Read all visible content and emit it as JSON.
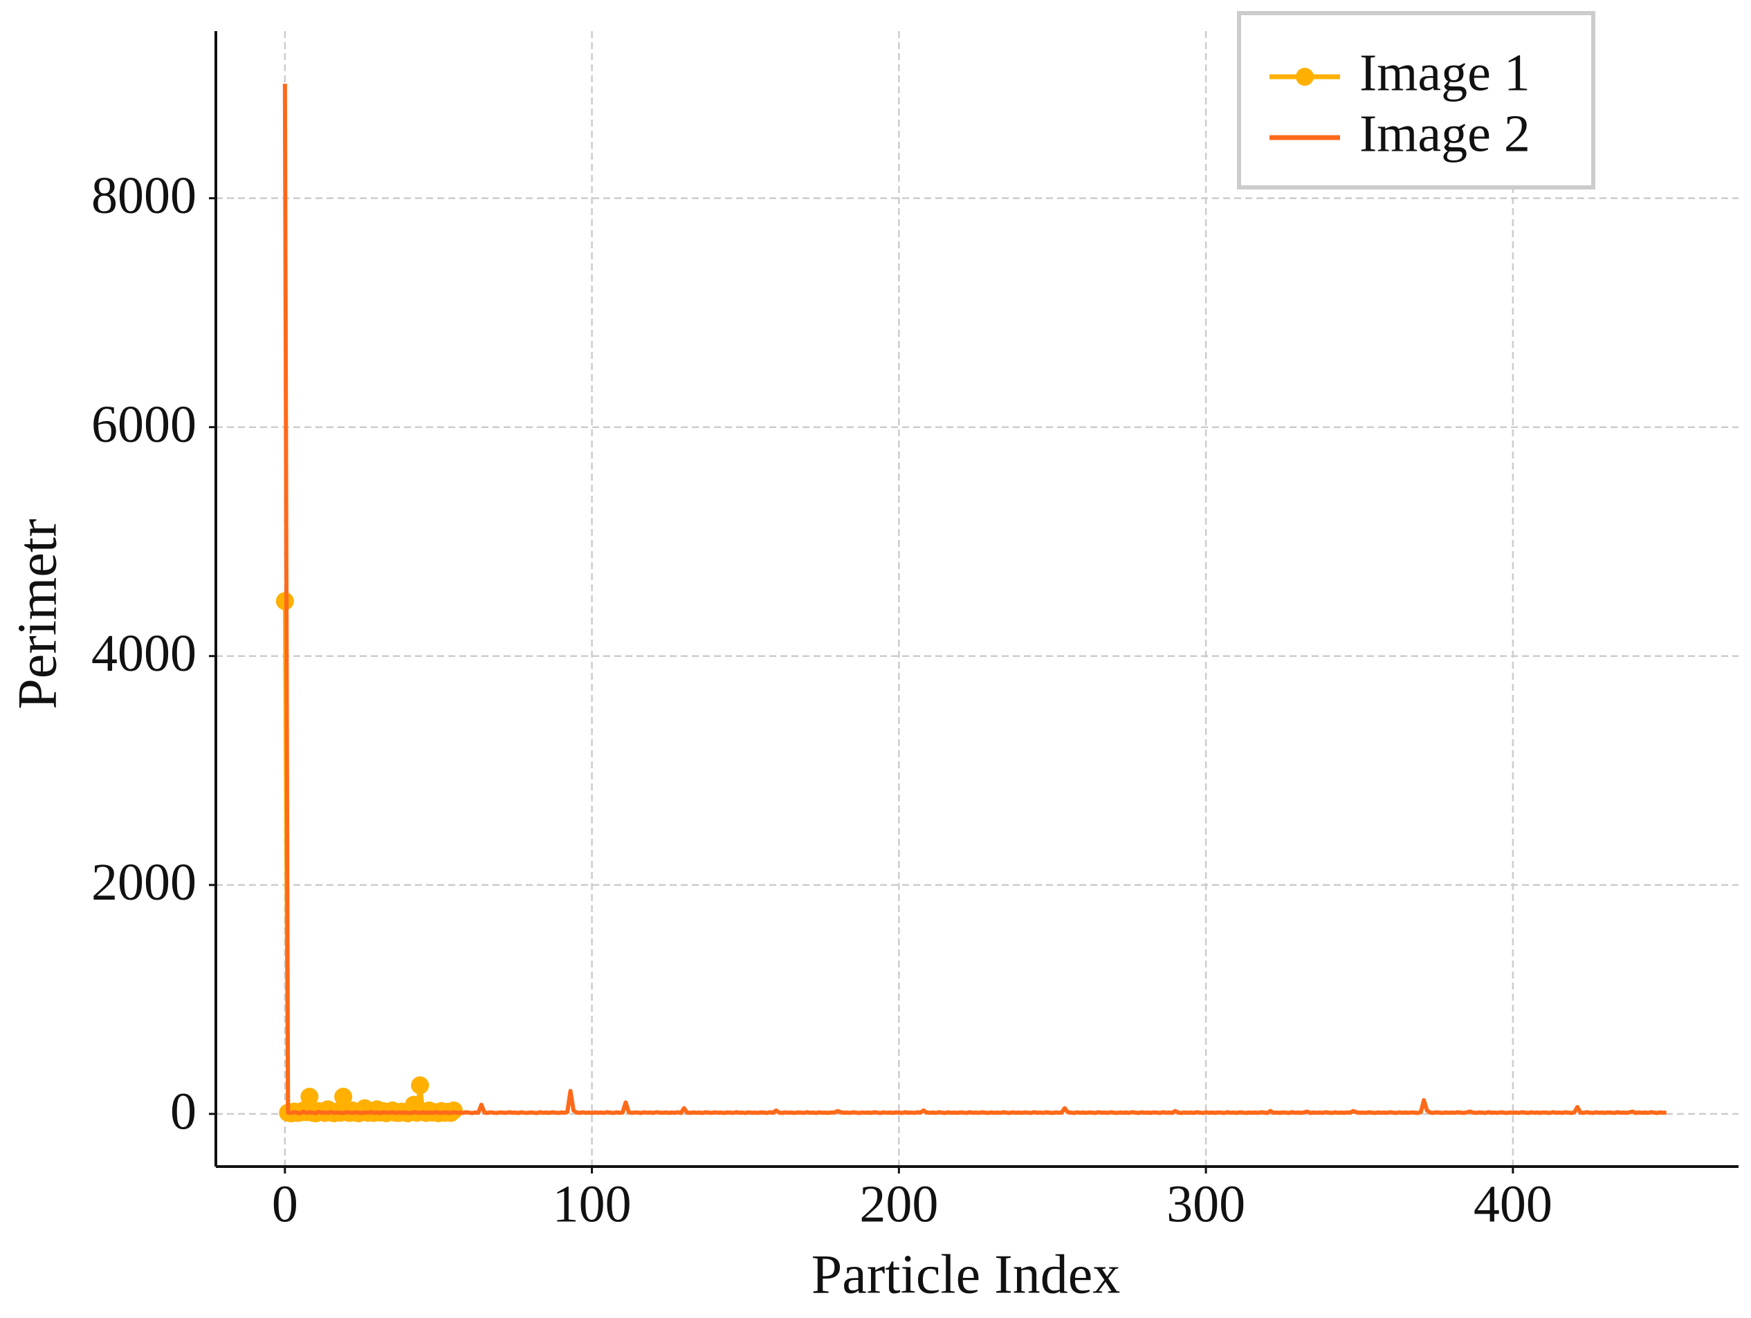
{
  "chart_data": {
    "type": "line",
    "x_label": "Particle Index",
    "y_label": "Perimetr",
    "xlim": [
      -22.5,
      473.5
    ],
    "ylim": [
      -460,
      9460
    ],
    "xticks": [
      0,
      100,
      200,
      300,
      400
    ],
    "yticks": [
      0,
      2000,
      4000,
      6000,
      8000
    ],
    "grid": true,
    "legend": "upper right",
    "series": [
      {
        "name": "Image 1",
        "color": "#ffb000",
        "marker": true,
        "values": [
          4480,
          10,
          5,
          20,
          8,
          12,
          30,
          15,
          150,
          10,
          5,
          25,
          18,
          8,
          40,
          12,
          6,
          20,
          10,
          150,
          15,
          8,
          30,
          12,
          5,
          20,
          50,
          10,
          18,
          8,
          40,
          12,
          25,
          6,
          15,
          30,
          10,
          8,
          20,
          12,
          5,
          15,
          80,
          10,
          250,
          20,
          8,
          30,
          12,
          15,
          6,
          25,
          10,
          18,
          8,
          30
        ]
      },
      {
        "name": "Image 2",
        "color": "#ff6a1a",
        "marker": false,
        "values": [
          9000,
          12,
          8,
          15,
          10,
          6,
          20,
          9,
          14,
          11,
          7,
          18,
          10,
          13,
          8,
          16,
          9,
          12,
          10,
          7,
          15,
          11,
          9,
          14,
          10,
          8,
          13,
          10,
          16,
          9,
          12,
          7,
          14,
          11,
          10,
          15,
          8,
          12,
          9,
          13,
          10,
          7,
          16,
          11,
          9,
          14,
          10,
          12,
          8,
          15,
          10,
          9,
          13,
          11,
          8,
          14,
          10,
          12,
          9,
          15,
          11,
          7,
          13,
          10,
          80,
          12,
          9,
          14,
          10,
          8,
          13,
          11,
          9,
          15,
          10,
          12,
          8,
          14,
          10,
          9,
          13,
          11,
          7,
          15,
          10,
          12,
          9,
          14,
          11,
          8,
          13,
          10,
          16,
          200,
          30,
          12,
          9,
          14,
          10,
          11,
          8,
          13,
          10,
          12,
          9,
          15,
          11,
          8,
          14,
          10,
          12,
          100,
          15,
          9,
          13,
          11,
          8,
          14,
          10,
          12,
          9,
          15,
          11,
          10,
          13,
          9,
          12,
          10,
          14,
          8,
          50,
          11,
          9,
          13,
          10,
          12,
          8,
          15,
          11,
          9,
          14,
          10,
          12,
          8,
          13,
          11,
          9,
          15,
          10,
          12,
          8,
          14,
          10,
          11,
          9,
          13,
          12,
          8,
          15,
          10,
          30,
          11,
          9,
          14,
          10,
          12,
          8,
          13,
          11,
          9,
          15,
          10,
          12,
          8,
          14,
          10,
          11,
          9,
          13,
          12,
          25,
          15,
          10,
          12,
          9,
          14,
          11,
          8,
          13,
          10,
          12,
          9,
          15,
          11,
          8,
          14,
          10,
          12,
          9,
          13,
          11,
          8,
          15,
          10,
          12,
          9,
          14,
          11,
          30,
          13,
          10,
          12,
          9,
          15,
          11,
          8,
          14,
          10,
          12,
          9,
          13,
          11,
          8,
          15,
          10,
          12,
          9,
          14,
          11,
          8,
          13,
          10,
          12,
          9,
          15,
          11,
          8,
          14,
          10,
          12,
          9,
          13,
          11,
          8,
          15,
          10,
          12,
          9,
          14,
          11,
          8,
          13,
          10,
          12,
          50,
          15,
          11,
          8,
          14,
          10,
          12,
          9,
          13,
          11,
          8,
          15,
          10,
          12,
          9,
          14,
          11,
          8,
          13,
          10,
          12,
          9,
          15,
          11,
          8,
          14,
          10,
          12,
          9,
          13,
          11,
          8,
          15,
          10,
          12,
          9,
          25,
          11,
          8,
          13,
          10,
          12,
          9,
          15,
          11,
          8,
          14,
          10,
          12,
          9,
          13,
          11,
          8,
          15,
          10,
          12,
          9,
          14,
          11,
          8,
          13,
          10,
          12,
          9,
          15,
          11,
          8,
          25,
          10,
          12,
          9,
          13,
          11,
          8,
          15,
          10,
          12,
          9,
          14,
          20,
          8,
          13,
          10,
          12,
          9,
          15,
          11,
          8,
          14,
          10,
          12,
          9,
          13,
          11,
          25,
          15,
          10,
          12,
          9,
          14,
          11,
          8,
          13,
          10,
          12,
          9,
          15,
          11,
          8,
          14,
          10,
          12,
          9,
          13,
          11,
          8,
          15,
          120,
          30,
          12,
          9,
          14,
          11,
          8,
          13,
          10,
          12,
          9,
          15,
          11,
          8,
          14,
          20,
          12,
          9,
          13,
          11,
          8,
          15,
          10,
          12,
          9,
          14,
          11,
          8,
          13,
          10,
          12,
          9,
          15,
          11,
          8,
          14,
          10,
          12,
          9,
          13,
          11,
          8,
          15,
          10,
          12,
          9,
          14,
          11,
          8,
          13,
          60,
          12,
          9,
          15,
          11,
          8,
          14,
          10,
          12,
          9,
          13,
          11,
          8,
          15,
          10,
          12,
          9,
          14,
          20,
          8,
          13,
          10,
          12,
          9,
          15,
          11,
          8,
          14,
          10,
          12
        ]
      }
    ]
  }
}
